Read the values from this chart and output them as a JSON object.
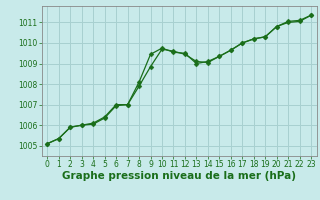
{
  "title": "Graphe pression niveau de la mer (hPa)",
  "bg_color": "#c8eaea",
  "grid_color": "#a8d0d0",
  "line_color": "#1a6e1a",
  "marker_color": "#1a6e1a",
  "xlim": [
    -0.5,
    23.5
  ],
  "ylim": [
    1004.5,
    1011.8
  ],
  "xticks": [
    0,
    1,
    2,
    3,
    4,
    5,
    6,
    7,
    8,
    9,
    10,
    11,
    12,
    13,
    14,
    15,
    16,
    17,
    18,
    19,
    20,
    21,
    22,
    23
  ],
  "yticks": [
    1005,
    1006,
    1007,
    1008,
    1009,
    1010,
    1011
  ],
  "series1_x": [
    0,
    1,
    2,
    3,
    4,
    5,
    6,
    7,
    8,
    9,
    10,
    11,
    12,
    13,
    14,
    15,
    16,
    17,
    18,
    19,
    20,
    21,
    22,
    23
  ],
  "series1_y": [
    1005.1,
    1005.35,
    1005.9,
    1006.0,
    1006.1,
    1006.4,
    1007.0,
    1007.0,
    1007.9,
    1008.85,
    1009.7,
    1009.6,
    1009.45,
    1009.1,
    1009.05,
    1009.35,
    1009.65,
    1010.0,
    1010.2,
    1010.3,
    1010.8,
    1011.0,
    1011.05,
    1011.35
  ],
  "series2_x": [
    0,
    1,
    2,
    3,
    4,
    5,
    6,
    7,
    8,
    9,
    10,
    11,
    12,
    13,
    14,
    15,
    16,
    17,
    18,
    19,
    20,
    21,
    22,
    23
  ],
  "series2_y": [
    1005.1,
    1005.35,
    1005.9,
    1006.0,
    1006.05,
    1006.35,
    1006.95,
    1007.0,
    1008.1,
    1009.45,
    1009.75,
    1009.55,
    1009.5,
    1009.0,
    1009.1,
    1009.35,
    1009.65,
    1010.0,
    1010.2,
    1010.3,
    1010.8,
    1011.05,
    1011.1,
    1011.35
  ],
  "tick_fontsize": 5.5,
  "title_fontsize": 7.5,
  "marker_size": 2.5,
  "line_width": 0.9
}
